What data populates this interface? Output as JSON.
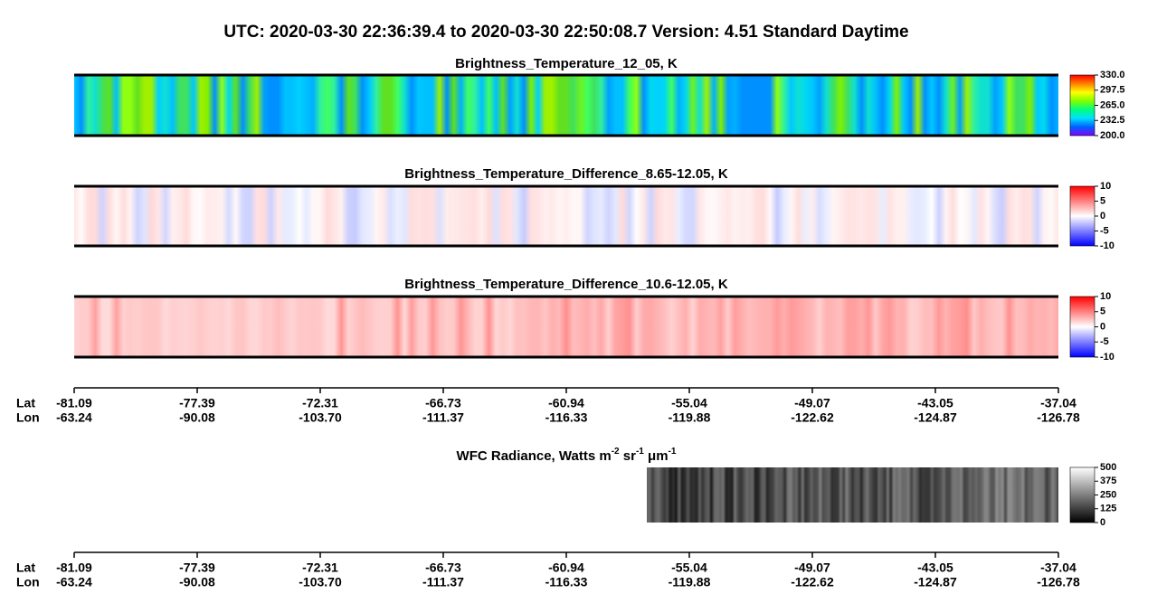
{
  "title": "UTC:  2020-03-30   22:36:39.4  to  2020-03-30   22:50:08.7    Version: 4.51  Standard Daytime",
  "panels": [
    {
      "title": "Brightness_Temperature_12_05, K",
      "colorbar": {
        "colors": [
          "#8000ff",
          "#0060ff",
          "#00e0ff",
          "#00ff80",
          "#80ff00",
          "#ffff00",
          "#ff8000",
          "#ff0000"
        ],
        "ylim": [
          200,
          330
        ],
        "yticks": [
          {
            "value": 200,
            "label": "200.0"
          },
          {
            "value": 232.5,
            "label": "232.5"
          },
          {
            "value": 265,
            "label": "265.0"
          },
          {
            "value": 297.5,
            "label": "297.5"
          },
          {
            "value": 330,
            "label": "330.0"
          }
        ]
      }
    },
    {
      "title": "Brightness_Temperature_Difference_8.65-12.05, K",
      "colorbar": {
        "colors": [
          "#0000ff",
          "#ffffff",
          "#ff0000"
        ],
        "ylim": [
          -10,
          10
        ],
        "yticks": [
          -10,
          -5,
          0,
          5,
          10
        ]
      }
    },
    {
      "title": "Brightness_Temperature_Difference_10.6-12.05, K",
      "colorbar": {
        "colors": [
          "#0000ff",
          "#ffffff",
          "#ff0000"
        ],
        "ylim": [
          -10,
          10
        ],
        "yticks": [
          -10,
          -5,
          0,
          5,
          10
        ]
      }
    },
    {
      "title_parts": [
        "WFC Radiance, Watts m",
        "-2",
        " sr",
        "-1",
        " μm",
        "-1"
      ],
      "colorbar": {
        "colors": [
          "#000000",
          "#ffffff"
        ],
        "ylim": [
          0,
          500
        ],
        "yticks": [
          0,
          125,
          250,
          375,
          500
        ]
      }
    }
  ],
  "axis": {
    "lat_label": "Lat",
    "lon_label": "Lon",
    "lat": [
      "-81.09",
      "-77.39",
      "-72.31",
      "-66.73",
      "-60.94",
      "-55.04",
      "-49.07",
      "-43.05",
      "-37.04"
    ],
    "lon": [
      "-63.24",
      "-90.08",
      "-103.70",
      "-111.37",
      "-116.33",
      "-119.88",
      "-122.62",
      "-124.87",
      "-126.78"
    ]
  }
}
